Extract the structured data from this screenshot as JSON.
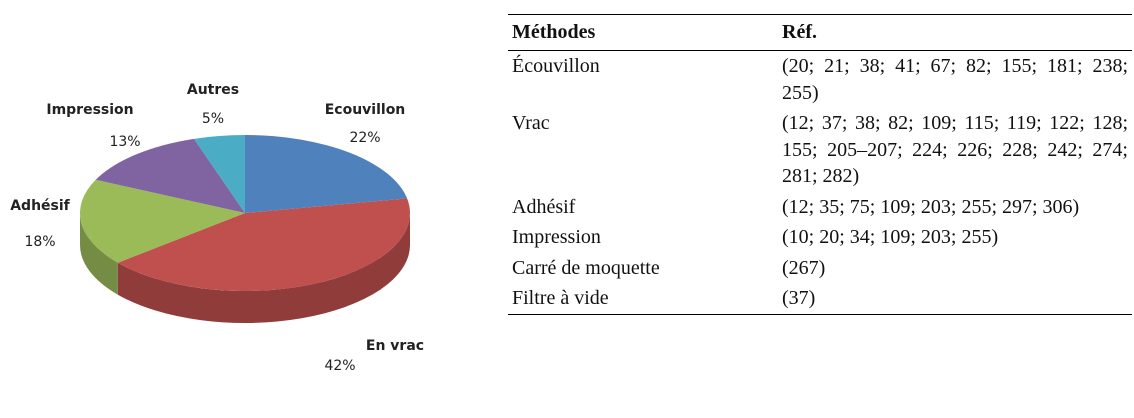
{
  "chart_data": {
    "type": "pie",
    "categories": [
      "Ecouvillon",
      "En vrac",
      "Adhésif",
      "Impression",
      "Autres"
    ],
    "values": [
      22,
      42,
      18,
      13,
      5
    ],
    "value_labels": [
      "22%",
      "42%",
      "18%",
      "13%",
      "5%"
    ],
    "colors": [
      "#4f81bd",
      "#c0504d",
      "#9bbb59",
      "#8064a2",
      "#4bacc6"
    ]
  },
  "table": {
    "header": [
      "Méthodes",
      "Réf."
    ],
    "rows": [
      [
        "Écouvillon",
        "(20; 21; 38; 41; 67; 82; 155; 181; 238; 255)"
      ],
      [
        "Vrac",
        "(12; 37; 38; 82; 109; 115; 119; 122; 128; 155; 205–207; 224; 226; 228; 242; 274; 281; 282)"
      ],
      [
        "Adhésif",
        "(12; 35; 75; 109; 203; 255; 297; 306)"
      ],
      [
        "Impression",
        "(10; 20; 34; 109; 203; 255)"
      ],
      [
        "Carré de moquette",
        "(267)"
      ],
      [
        "Filtre à vide",
        "(37)"
      ]
    ]
  }
}
